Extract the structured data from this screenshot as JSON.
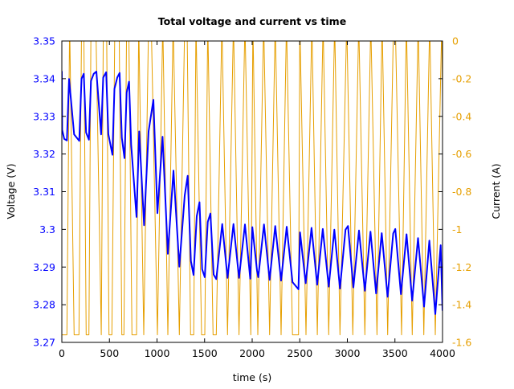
{
  "chart_data": {
    "type": "line",
    "title": "Total voltage and current vs time",
    "xlabel": "time (s)",
    "ylabel": "Voltage (V)",
    "y2label": "Current (A)",
    "xlim": [
      0,
      4000
    ],
    "ylim": [
      3.27,
      3.35
    ],
    "y2lim": [
      -1.6,
      0
    ],
    "grid": false,
    "legend": "none",
    "x_ticks": [
      "0",
      "500",
      "1000",
      "1500",
      "2000",
      "2500",
      "3000",
      "3500",
      "4000"
    ],
    "y_ticks": [
      "3.27",
      "3.28",
      "3.29",
      "3.3",
      "3.31",
      "3.32",
      "3.33",
      "3.34",
      "3.35"
    ],
    "y2_ticks": [
      "-1.6",
      "-1.4",
      "-1.2",
      "-1",
      "-0.8",
      "-0.6",
      "-0.4",
      "-0.2",
      "0"
    ],
    "colors": {
      "voltage": "#0000ff",
      "current": "#e69f00",
      "left_axis_text": "#0000ff",
      "right_axis_text": "#e69f00"
    },
    "series": [
      {
        "axis": "left",
        "points": [
          [
            0,
            3.342
          ],
          [
            3,
            3.3264
          ],
          [
            25,
            3.324
          ],
          [
            53,
            3.3236
          ],
          [
            76,
            3.3399
          ],
          [
            129,
            3.3252
          ],
          [
            183,
            3.3235
          ],
          [
            207,
            3.34
          ],
          [
            230,
            3.3413
          ],
          [
            255,
            3.3257
          ],
          [
            284,
            3.3238
          ],
          [
            306,
            3.3394
          ],
          [
            335,
            3.3413
          ],
          [
            363,
            3.3419
          ],
          [
            413,
            3.3252
          ],
          [
            435,
            3.3403
          ],
          [
            466,
            3.3417
          ],
          [
            489,
            3.3253
          ],
          [
            532,
            3.3198
          ],
          [
            553,
            3.3373
          ],
          [
            582,
            3.3403
          ],
          [
            607,
            3.3415
          ],
          [
            630,
            3.3243
          ],
          [
            658,
            3.3189
          ],
          [
            681,
            3.3363
          ],
          [
            706,
            3.3392
          ],
          [
            728,
            3.3225
          ],
          [
            785,
            3.3033
          ],
          [
            813,
            3.326
          ],
          [
            864,
            3.3011
          ],
          [
            911,
            3.326
          ],
          [
            962,
            3.3344
          ],
          [
            1004,
            3.3043
          ],
          [
            1058,
            3.3246
          ],
          [
            1114,
            3.2935
          ],
          [
            1173,
            3.3156
          ],
          [
            1235,
            3.2901
          ],
          [
            1291,
            3.309
          ],
          [
            1322,
            3.3142
          ],
          [
            1356,
            3.2916
          ],
          [
            1384,
            3.2879
          ],
          [
            1418,
            3.3035
          ],
          [
            1446,
            3.3072
          ],
          [
            1474,
            3.2894
          ],
          [
            1502,
            3.2873
          ],
          [
            1533,
            3.302
          ],
          [
            1561,
            3.3042
          ],
          [
            1595,
            3.288
          ],
          [
            1623,
            3.2868
          ],
          [
            1685,
            3.3014
          ],
          [
            1741,
            3.2871
          ],
          [
            1803,
            3.3014
          ],
          [
            1862,
            3.2871
          ],
          [
            1924,
            3.3013
          ],
          [
            1980,
            3.2869
          ],
          [
            2002,
            3.3006
          ],
          [
            2051,
            3.2891
          ],
          [
            2064,
            3.2873
          ],
          [
            2124,
            3.3013
          ],
          [
            2183,
            3.2866
          ],
          [
            2242,
            3.3009
          ],
          [
            2304,
            3.2864
          ],
          [
            2363,
            3.3007
          ],
          [
            2424,
            3.286
          ],
          [
            2486,
            3.2841
          ],
          [
            2503,
            3.2992
          ],
          [
            2562,
            3.2857
          ],
          [
            2624,
            3.3004
          ],
          [
            2683,
            3.2853
          ],
          [
            2742,
            3.3001
          ],
          [
            2804,
            3.2848
          ],
          [
            2863,
            3.2999
          ],
          [
            2922,
            3.2843
          ],
          [
            2981,
            3.2999
          ],
          [
            3007,
            3.3009
          ],
          [
            3063,
            3.2846
          ],
          [
            3122,
            3.2997
          ],
          [
            3184,
            3.2837
          ],
          [
            3243,
            3.2994
          ],
          [
            3302,
            3.283
          ],
          [
            3361,
            3.299
          ],
          [
            3423,
            3.2821
          ],
          [
            3482,
            3.2989
          ],
          [
            3504,
            3.3001
          ],
          [
            3563,
            3.2828
          ],
          [
            3622,
            3.2987
          ],
          [
            3681,
            3.2811
          ],
          [
            3743,
            3.2977
          ],
          [
            3806,
            3.2795
          ],
          [
            3862,
            3.297
          ],
          [
            3924,
            3.2775
          ],
          [
            3981,
            3.2958
          ],
          [
            4000,
            3.2784
          ]
        ]
      },
      {
        "axis": "right",
        "points": [
          [
            0,
            -1.56
          ],
          [
            53,
            -1.56
          ],
          [
            82,
            0.1
          ],
          [
            129,
            -1.56
          ],
          [
            180,
            -1.56
          ],
          [
            208,
            0.1
          ],
          [
            230,
            0.1
          ],
          [
            256,
            -1.56
          ],
          [
            284,
            -1.56
          ],
          [
            306,
            0.1
          ],
          [
            357,
            0.1
          ],
          [
            414,
            -1.56
          ],
          [
            436,
            0.1
          ],
          [
            470,
            0.1
          ],
          [
            495,
            -1.56
          ],
          [
            526,
            -1.56
          ],
          [
            557,
            0.1
          ],
          [
            602,
            0.1
          ],
          [
            630,
            -1.56
          ],
          [
            652,
            -1.56
          ],
          [
            681,
            0.1
          ],
          [
            703,
            0.1
          ],
          [
            737,
            -1.56
          ],
          [
            785,
            -1.56
          ],
          [
            808,
            0.1
          ],
          [
            861,
            -1.56
          ],
          [
            911,
            0.1
          ],
          [
            939,
            0.1
          ],
          [
            1004,
            -1.56
          ],
          [
            1061,
            0.1
          ],
          [
            1114,
            -1.56
          ],
          [
            1170,
            0.1
          ],
          [
            1235,
            -1.56
          ],
          [
            1291,
            0.1
          ],
          [
            1316,
            0.1
          ],
          [
            1353,
            -1.56
          ],
          [
            1386,
            -1.56
          ],
          [
            1409,
            0.1
          ],
          [
            1468,
            -1.56
          ],
          [
            1502,
            -1.56
          ],
          [
            1533,
            0.1
          ],
          [
            1589,
            -1.56
          ],
          [
            1623,
            -1.56
          ],
          [
            1682,
            0.1
          ],
          [
            1741,
            -1.56
          ],
          [
            1803,
            0.1
          ],
          [
            1862,
            -1.56
          ],
          [
            1924,
            0.1
          ],
          [
            1986,
            -1.56
          ],
          [
            2008,
            0.1
          ],
          [
            2059,
            -1.56
          ],
          [
            2121,
            0.1
          ],
          [
            2183,
            -1.56
          ],
          [
            2242,
            0.1
          ],
          [
            2304,
            -1.56
          ],
          [
            2360,
            0.1
          ],
          [
            2424,
            -1.56
          ],
          [
            2487,
            -1.56
          ],
          [
            2500,
            0.1
          ],
          [
            2565,
            -1.56
          ],
          [
            2627,
            0.1
          ],
          [
            2684,
            -1.56
          ],
          [
            2745,
            0.1
          ],
          [
            2804,
            -1.56
          ],
          [
            2867,
            0.1
          ],
          [
            2922,
            -1.56
          ],
          [
            2993,
            0.1
          ],
          [
            3057,
            -1.56
          ],
          [
            3120,
            0.1
          ],
          [
            3184,
            -1.56
          ],
          [
            3246,
            0.1
          ],
          [
            3311,
            -1.56
          ],
          [
            3365,
            0.1
          ],
          [
            3424,
            -1.56
          ],
          [
            3485,
            0.1
          ],
          [
            3504,
            0.1
          ],
          [
            3570,
            -1.56
          ],
          [
            3620,
            0.1
          ],
          [
            3682,
            -1.56
          ],
          [
            3744,
            0.1
          ],
          [
            3803,
            -1.56
          ],
          [
            3865,
            0.1
          ],
          [
            3924,
            -1.56
          ],
          [
            3992,
            0.1
          ],
          [
            4000,
            -0.3
          ]
        ]
      }
    ]
  }
}
